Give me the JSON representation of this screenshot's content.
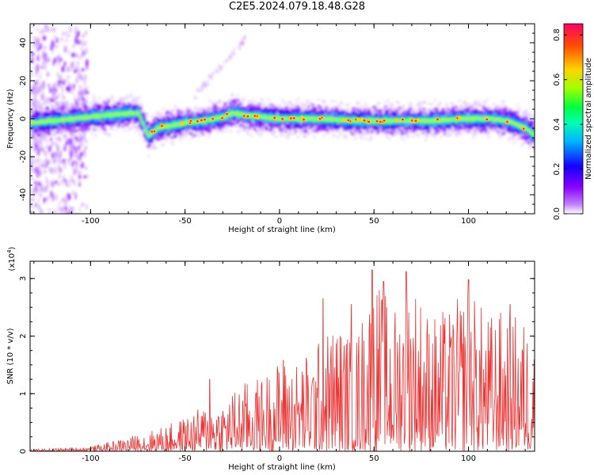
{
  "title": "C2E5.2024.079.18.48.G28",
  "chart_data": [
    {
      "type": "heatmap",
      "xlabel": "Height of straight line (km)",
      "ylabel": "Frequency (Hz)",
      "xlim": [
        -132,
        135
      ],
      "ylim": [
        -50,
        50
      ],
      "xticks": [
        -100,
        -50,
        0,
        50,
        100
      ],
      "yticks": [
        -40,
        -20,
        0,
        20,
        40
      ],
      "colorbar": {
        "label": "Normalized spectral amplitude",
        "range": [
          0,
          0.85
        ],
        "ticks": [
          0.0,
          0.2,
          0.4,
          0.6,
          0.8
        ],
        "colormap": [
          "#ffffff",
          "#8a00ff",
          "#1400ff",
          "#00c8ff",
          "#00ff7a",
          "#8cff00",
          "#ffd200",
          "#ff5000",
          "#ff0064"
        ]
      },
      "ridge": {
        "x": [
          -130,
          -120,
          -110,
          -100,
          -90,
          -80,
          -75,
          -70,
          -65,
          -60,
          -50,
          -40,
          -30,
          -25,
          -20,
          -10,
          0,
          20,
          40,
          60,
          80,
          100,
          110,
          120,
          130,
          135
        ],
        "y": [
          -2,
          -1,
          0,
          1,
          2,
          3,
          3,
          -9,
          -5,
          -4,
          -2,
          -1,
          1,
          3,
          2,
          1,
          0,
          0,
          -1,
          -1,
          -1,
          0,
          0,
          -1,
          -5,
          -9
        ]
      },
      "grid": false
    },
    {
      "type": "line",
      "title_unit": "(x10",
      "title_exp": "4",
      "title_close": ")",
      "xlabel": "Height of straight line (km)",
      "ylabel": "SNR (10 * v/v)",
      "xlim": [
        -132,
        135
      ],
      "ylim": [
        0,
        3.3
      ],
      "xticks": [
        -100,
        -50,
        0,
        50,
        100
      ],
      "yticks": [
        0,
        1,
        2,
        3
      ],
      "color": "#ee3333",
      "envelope": {
        "x": [
          -132,
          -100,
          -80,
          -60,
          -50,
          -40,
          -30,
          -20,
          -10,
          0,
          10,
          20,
          30,
          40,
          50,
          60,
          70,
          80,
          90,
          100,
          110,
          120,
          135
        ],
        "y": [
          0.03,
          0.08,
          0.25,
          0.45,
          0.6,
          0.8,
          0.9,
          1.2,
          1.3,
          1.6,
          1.6,
          1.9,
          2.3,
          2.0,
          3.1,
          2.5,
          3.1,
          2.4,
          2.5,
          2.9,
          2.4,
          2.5,
          2.2
        ]
      },
      "peaks": [
        {
          "x": -37,
          "y": 1.25
        },
        {
          "x": 2,
          "y": 1.58
        },
        {
          "x": 23,
          "y": 2.65
        },
        {
          "x": 38,
          "y": 2.55
        },
        {
          "x": 49,
          "y": 3.15
        },
        {
          "x": 55,
          "y": 2.95
        },
        {
          "x": 67,
          "y": 3.12
        },
        {
          "x": 100,
          "y": 2.98
        },
        {
          "x": 122,
          "y": 2.55
        }
      ],
      "grid": false
    }
  ]
}
